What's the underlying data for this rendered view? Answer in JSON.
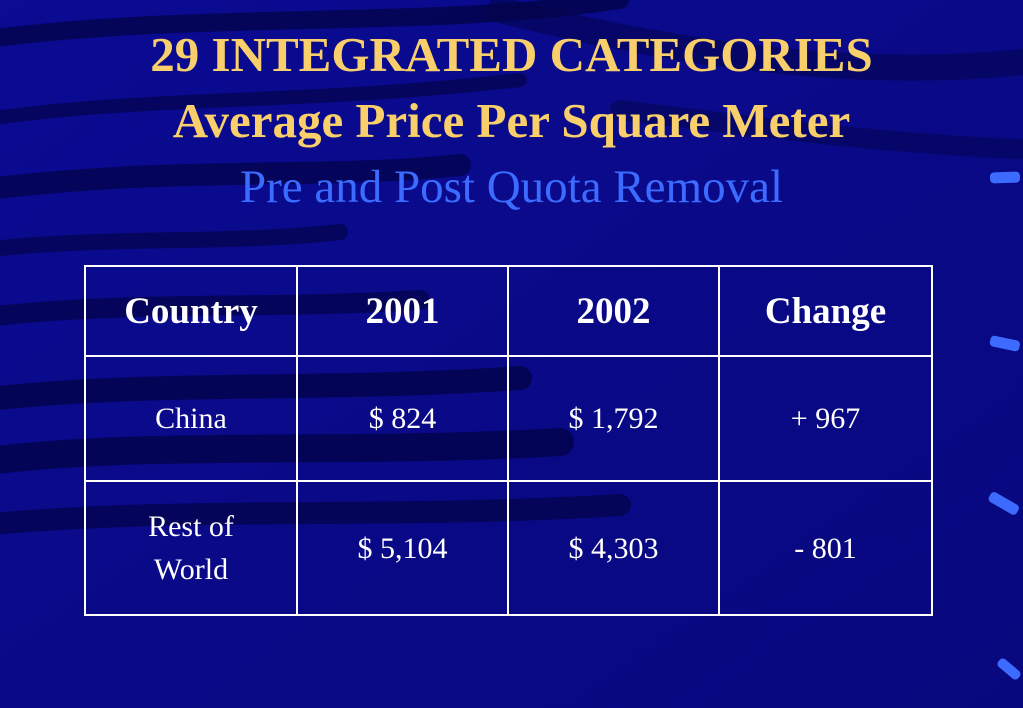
{
  "slide": {
    "title": "29 INTEGRATED CATEGORIES",
    "subtitle_bold": "Average Price Per Square Meter",
    "subtitle": "Pre and Post Quota Removal"
  },
  "table": {
    "headers": [
      "Country",
      "2001",
      "2002",
      "Change"
    ],
    "rows": [
      [
        "China",
        "$ 824",
        "$ 1,792",
        "+ 967"
      ],
      [
        "Rest of World",
        "$ 5,104",
        "$ 4,303",
        "- 801"
      ]
    ]
  },
  "colors": {
    "background": "#0a0a8c",
    "title": "#f8cf6a",
    "subtitle": "#3b6cff",
    "table_text": "#ffffff",
    "table_border": "#ffffff"
  }
}
